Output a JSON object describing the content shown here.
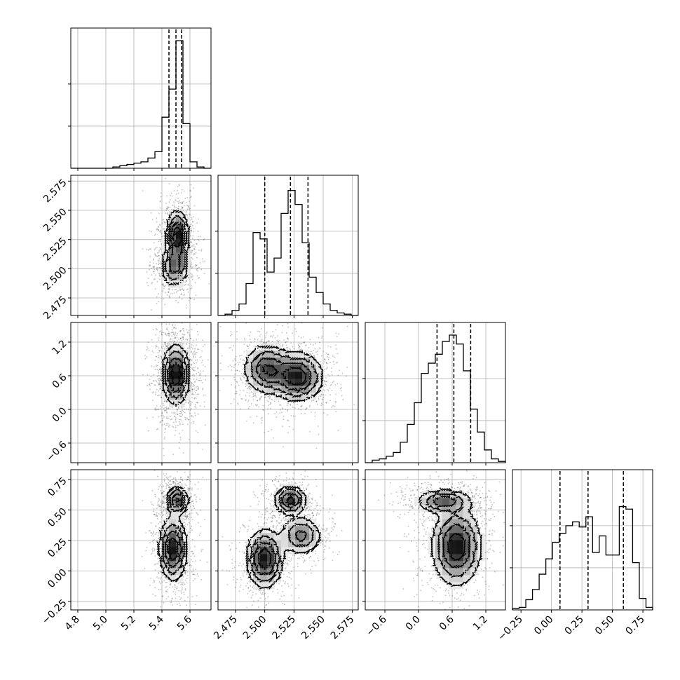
{
  "chart_data": {
    "type": "corner",
    "parameters": [
      {
        "id": "p0",
        "range": [
          4.75,
          5.75
        ],
        "ticks": [
          4.8,
          5.0,
          5.2,
          5.4,
          5.6
        ],
        "tick_labels": [
          "4.8",
          "5.0",
          "5.2",
          "5.4",
          "5.6"
        ],
        "quantiles": [
          5.45,
          5.5,
          5.54
        ],
        "hist": [
          0,
          0,
          0,
          0,
          0,
          0,
          0.01,
          0.02,
          0.03,
          0.04,
          0.05,
          0.08,
          0.13,
          0.4,
          0.62,
          1.0,
          0.35,
          0.05,
          0.01,
          0
        ]
      },
      {
        "id": "p1",
        "range": [
          2.46,
          2.58
        ],
        "ticks": [
          2.475,
          2.5,
          2.525,
          2.55,
          2.575
        ],
        "tick_labels": [
          "2.475",
          "2.500",
          "2.525",
          "2.550",
          "2.575"
        ],
        "quantiles": [
          2.5,
          2.522,
          2.537
        ],
        "hist": [
          0,
          0.01,
          0.04,
          0.09,
          0.25,
          0.65,
          0.6,
          0.34,
          0.45,
          0.8,
          0.98,
          0.87,
          0.57,
          0.3,
          0.18,
          0.09,
          0.04,
          0.02,
          0.01,
          0
        ]
      },
      {
        "id": "p2",
        "range": [
          -0.95,
          1.55
        ],
        "ticks": [
          -0.6,
          0.0,
          0.6,
          1.2
        ],
        "tick_labels": [
          "−0.6",
          "0.0",
          "0.6",
          "1.2"
        ],
        "quantiles": [
          0.33,
          0.63,
          0.93
        ],
        "hist": [
          0,
          0.02,
          0.03,
          0.05,
          0.08,
          0.16,
          0.3,
          0.47,
          0.7,
          0.78,
          0.85,
          0.95,
          1.0,
          0.93,
          0.72,
          0.42,
          0.24,
          0.1,
          0.03,
          0.01
        ]
      },
      {
        "id": "p3",
        "range": [
          -0.32,
          0.83
        ],
        "ticks": [
          -0.25,
          0.0,
          0.25,
          0.5,
          0.75
        ],
        "tick_labels": [
          "−0.25",
          "0.00",
          "0.25",
          "0.50",
          "0.75"
        ],
        "quantiles": [
          0.07,
          0.3,
          0.59
        ],
        "hist": [
          0.01,
          0.02,
          0.08,
          0.16,
          0.28,
          0.4,
          0.53,
          0.6,
          0.66,
          0.69,
          0.65,
          0.73,
          0.45,
          0.58,
          0.43,
          0.43,
          0.81,
          0.79,
          0.37,
          0.09,
          0.02
        ]
      }
    ],
    "pairs": [
      {
        "x": "p0",
        "y": "p1",
        "modes": [
          {
            "mx": 5.51,
            "my": 2.528,
            "sx": 0.04,
            "sy": 0.011,
            "w": 0.6
          },
          {
            "mx": 5.49,
            "my": 2.502,
            "sx": 0.05,
            "sy": 0.009,
            "w": 0.4
          }
        ]
      },
      {
        "x": "p0",
        "y": "p2",
        "modes": [
          {
            "mx": 5.5,
            "my": 0.62,
            "sx": 0.05,
            "sy": 0.27,
            "w": 1.0
          }
        ]
      },
      {
        "x": "p0",
        "y": "p3",
        "modes": [
          {
            "mx": 5.51,
            "my": 0.58,
            "sx": 0.04,
            "sy": 0.06,
            "w": 0.45
          },
          {
            "mx": 5.48,
            "my": 0.18,
            "sx": 0.05,
            "sy": 0.13,
            "w": 0.55
          }
        ]
      },
      {
        "x": "p1",
        "y": "p2",
        "modes": [
          {
            "mx": 2.502,
            "my": 0.72,
            "sx": 0.01,
            "sy": 0.22,
            "w": 0.45
          },
          {
            "mx": 2.528,
            "my": 0.58,
            "sx": 0.011,
            "sy": 0.22,
            "w": 0.55
          }
        ]
      },
      {
        "x": "p1",
        "y": "p3",
        "modes": [
          {
            "mx": 2.5,
            "my": 0.1,
            "sx": 0.008,
            "sy": 0.12,
            "w": 0.4
          },
          {
            "mx": 2.522,
            "my": 0.58,
            "sx": 0.007,
            "sy": 0.06,
            "w": 0.35
          },
          {
            "mx": 2.531,
            "my": 0.29,
            "sx": 0.009,
            "sy": 0.08,
            "w": 0.25
          }
        ]
      },
      {
        "x": "p2",
        "y": "p3",
        "modes": [
          {
            "mx": 0.45,
            "my": 0.57,
            "sx": 0.25,
            "sy": 0.05,
            "w": 0.4
          },
          {
            "mx": 0.68,
            "my": 0.2,
            "sx": 0.22,
            "sy": 0.16,
            "w": 0.6
          }
        ]
      }
    ],
    "grid": true,
    "density_contours": true
  }
}
